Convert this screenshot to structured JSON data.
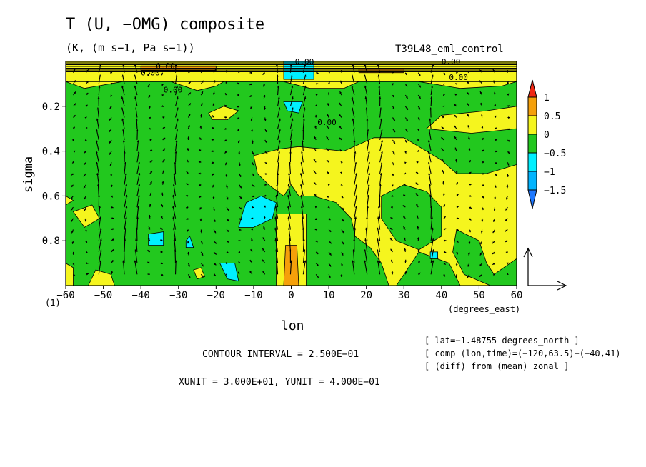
{
  "figure": {
    "title": "T (U, −OMG) composite",
    "units": "(K, (m s−1, Pa s−1))",
    "run": "T39L48_eml_control",
    "contour_interval": "CONTOUR INTERVAL = 2.500E−01",
    "unit_vectors": "XUNIT = 3.000E+01, YUNIT = 4.000E−01",
    "meta": [
      "[ lat=−1.48755 degrees_north ]",
      "[ comp (lon,time)=(−120,63.5)−(−40,41)",
      "[ (diff) from (mean) zonal ]"
    ],
    "sigma_origin": "(1)"
  },
  "colors": {
    "below_-1.5": "#1e78ff",
    "-1.5_to_-1": "#00b4ff",
    "-1_to_-0.5": "#00f0ff",
    "-0.5_to_0": "#22c81e",
    "0_to_0.5": "#f5f51e",
    "0.5_to_1": "#f5a00a",
    "above_1": "#f02814"
  },
  "chart_data": {
    "type": "heatmap",
    "x": {
      "label": "lon",
      "unit_label": "(degrees_east)",
      "range": [
        -60,
        60
      ],
      "ticks": [
        -60,
        -50,
        -40,
        -30,
        -20,
        -10,
        0,
        10,
        20,
        30,
        40,
        50,
        60
      ],
      "tick_labels": [
        "−60",
        "−50",
        "−40",
        "−30",
        "−20",
        "−10",
        "0",
        "10",
        "20",
        "30",
        "40",
        "50",
        "60"
      ]
    },
    "y": {
      "label": "sigma",
      "range": [
        1.0,
        0.0
      ],
      "ticks": [
        0.2,
        0.4,
        0.6,
        0.8
      ],
      "tick_labels": [
        "0.2",
        "0.4",
        "0.6",
        "0.8"
      ]
    },
    "colorbar": {
      "levels": [
        -1.5,
        -1,
        -0.5,
        0,
        0.5,
        1
      ],
      "tick_labels": [
        "−1.5",
        "−1",
        "−0.5",
        "0",
        "0.5",
        "1"
      ],
      "extends": "both"
    },
    "contour_labels": [
      "0.00",
      "0.00",
      "0.00",
      "0.00",
      "0.00",
      "0.00",
      "0.00"
    ],
    "shaded_regions": [
      {
        "level": "-0.5_to_0",
        "polygon": [
          [
            -60,
            1.0
          ],
          [
            60,
            1.0
          ],
          [
            60,
            0.0
          ],
          [
            -60,
            0.0
          ]
        ]
      },
      {
        "level": "0_to_0.5",
        "polygon": [
          [
            -60,
            0.0
          ],
          [
            60,
            0.0
          ],
          [
            60,
            0.09
          ],
          [
            -60,
            0.09
          ]
        ]
      },
      {
        "level": "0_to_0.5",
        "polygon": [
          [
            -60,
            0.09
          ],
          [
            -55,
            0.12
          ],
          [
            -45,
            0.09
          ],
          [
            -60,
            0.09
          ]
        ]
      },
      {
        "level": "0_to_0.5",
        "polygon": [
          [
            -32,
            0.09
          ],
          [
            -25,
            0.13
          ],
          [
            -20,
            0.11
          ],
          [
            -18,
            0.09
          ]
        ]
      },
      {
        "level": "0_to_0.5",
        "polygon": [
          [
            -2,
            0.09
          ],
          [
            5,
            0.12
          ],
          [
            14,
            0.12
          ],
          [
            18,
            0.09
          ]
        ]
      },
      {
        "level": "0_to_0.5",
        "polygon": [
          [
            34,
            0.09
          ],
          [
            45,
            0.12
          ],
          [
            56,
            0.11
          ],
          [
            60,
            0.09
          ]
        ]
      },
      {
        "level": "0_to_0.5",
        "polygon": [
          [
            -22,
            0.23
          ],
          [
            -18,
            0.2
          ],
          [
            -14,
            0.22
          ],
          [
            -17,
            0.26
          ],
          [
            -21,
            0.26
          ]
        ]
      },
      {
        "level": "0_to_0.5",
        "polygon": [
          [
            36,
            0.3
          ],
          [
            40,
            0.24
          ],
          [
            52,
            0.22
          ],
          [
            60,
            0.2
          ],
          [
            60,
            0.3
          ],
          [
            48,
            0.32
          ]
        ]
      },
      {
        "level": "0_to_0.5",
        "polygon": [
          [
            -10,
            0.42
          ],
          [
            -3,
            0.39
          ],
          [
            2,
            0.38
          ],
          [
            14,
            0.4
          ],
          [
            22,
            0.34
          ],
          [
            30,
            0.34
          ],
          [
            40,
            0.44
          ],
          [
            44,
            0.5
          ],
          [
            52,
            0.5
          ],
          [
            60,
            0.46
          ],
          [
            60,
            1.0
          ],
          [
            45,
            1.0
          ],
          [
            42,
            0.9
          ],
          [
            34,
            0.85
          ],
          [
            30,
            0.95
          ],
          [
            28,
            1.0
          ],
          [
            26,
            1.0
          ],
          [
            24,
            0.9
          ],
          [
            21,
            0.83
          ],
          [
            17,
            0.78
          ],
          [
            16,
            0.7
          ],
          [
            12,
            0.63
          ],
          [
            6,
            0.6
          ],
          [
            2,
            0.6
          ],
          [
            0,
            0.55
          ],
          [
            -2,
            0.6
          ],
          [
            -6,
            0.55
          ],
          [
            -9,
            0.5
          ]
        ]
      },
      {
        "level": "-0.5_to_0",
        "polygon": [
          [
            24,
            0.6
          ],
          [
            30,
            0.55
          ],
          [
            36,
            0.58
          ],
          [
            40,
            0.65
          ],
          [
            40,
            0.78
          ],
          [
            34,
            0.84
          ],
          [
            28,
            0.8
          ],
          [
            24,
            0.7
          ]
        ]
      },
      {
        "level": "-0.5_to_0",
        "polygon": [
          [
            44,
            0.75
          ],
          [
            50,
            0.8
          ],
          [
            52,
            0.9
          ],
          [
            54,
            0.95
          ],
          [
            60,
            0.88
          ],
          [
            60,
            1.0
          ],
          [
            53,
            1.0
          ],
          [
            46,
            0.95
          ],
          [
            43,
            0.85
          ]
        ]
      },
      {
        "level": "0_to_0.5",
        "polygon": [
          [
            -58,
            0.67
          ],
          [
            -53,
            0.64
          ],
          [
            -51,
            0.7
          ],
          [
            -55,
            0.74
          ]
        ]
      },
      {
        "level": "0_to_0.5",
        "polygon": [
          [
            -60,
            0.6
          ],
          [
            -58,
            0.62
          ],
          [
            -60,
            0.64
          ]
        ]
      },
      {
        "level": "0_to_0.5",
        "polygon": [
          [
            -54,
            1.0
          ],
          [
            -52,
            0.93
          ],
          [
            -48,
            0.95
          ],
          [
            -47,
            1.0
          ]
        ]
      },
      {
        "level": "0_to_0.5",
        "polygon": [
          [
            -60,
            0.9
          ],
          [
            -58,
            0.92
          ],
          [
            -58,
            1.0
          ],
          [
            -60,
            1.0
          ]
        ]
      },
      {
        "level": "0_to_0.5",
        "polygon": [
          [
            -4,
            0.68
          ],
          [
            4,
            0.68
          ],
          [
            4,
            1.0
          ],
          [
            -4,
            1.0
          ]
        ]
      },
      {
        "level": "0_to_0.5",
        "polygon": [
          [
            -26,
            0.93
          ],
          [
            -24,
            0.92
          ],
          [
            -23,
            0.96
          ],
          [
            -25,
            0.97
          ]
        ]
      },
      {
        "level": "0.5_to_1",
        "polygon": [
          [
            -1.5,
            0.82
          ],
          [
            1.5,
            0.82
          ],
          [
            2,
            1.0
          ],
          [
            -2,
            1.0
          ]
        ]
      },
      {
        "level": "-1_to_-0.5",
        "polygon": [
          [
            -19,
            0.9
          ],
          [
            -15,
            0.9
          ],
          [
            -14,
            0.98
          ],
          [
            -17,
            0.97
          ]
        ]
      },
      {
        "level": "-1_to_-0.5",
        "polygon": [
          [
            -2,
            0.18
          ],
          [
            3,
            0.18
          ],
          [
            2,
            0.23
          ],
          [
            -1,
            0.22
          ]
        ]
      },
      {
        "level": "-1_to_-0.5",
        "polygon": [
          [
            -38,
            0.77
          ],
          [
            -34,
            0.76
          ],
          [
            -34,
            0.82
          ],
          [
            -38,
            0.82
          ]
        ]
      },
      {
        "level": "-1_to_-0.5",
        "polygon": [
          [
            -28,
            0.8
          ],
          [
            -27,
            0.78
          ],
          [
            -26,
            0.83
          ],
          [
            -28,
            0.83
          ]
        ]
      },
      {
        "level": "-1_to_-0.5",
        "polygon": [
          [
            -12,
            0.63
          ],
          [
            -8,
            0.6
          ],
          [
            -4,
            0.63
          ],
          [
            -5,
            0.7
          ],
          [
            -10,
            0.74
          ],
          [
            -14,
            0.74
          ],
          [
            -13,
            0.68
          ]
        ]
      },
      {
        "level": "-1_to_-0.5",
        "polygon": [
          [
            37,
            0.85
          ],
          [
            39,
            0.85
          ],
          [
            39,
            0.88
          ],
          [
            37,
            0.88
          ]
        ]
      },
      {
        "level": "-1_to_-0.5",
        "polygon": [
          [
            -2,
            0.0
          ],
          [
            6,
            0.0
          ],
          [
            6,
            0.08
          ],
          [
            -2,
            0.08
          ]
        ]
      },
      {
        "level": "0.5_to_1",
        "polygon": [
          [
            -40,
            0.02
          ],
          [
            -20,
            0.02
          ],
          [
            -20,
            0.04
          ],
          [
            -40,
            0.04
          ]
        ]
      },
      {
        "level": "0.5_to_1",
        "polygon": [
          [
            18,
            0.03
          ],
          [
            30,
            0.03
          ],
          [
            30,
            0.05
          ],
          [
            18,
            0.05
          ]
        ]
      }
    ],
    "vector_field": {
      "description": "(U, −OMG) wind vectors on a regular lon-sigma grid",
      "strong_updraft_columns_lon": [
        -52,
        -43,
        -30,
        -4,
        -2,
        0,
        2,
        4,
        18,
        20,
        22,
        37
      ]
    }
  }
}
